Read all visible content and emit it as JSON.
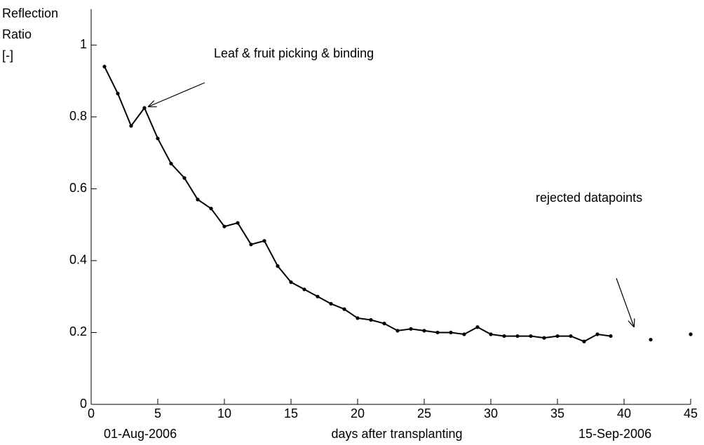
{
  "chart_data": {
    "type": "line",
    "y_label": [
      "Reflection",
      "Ratio",
      "[-]"
    ],
    "x_label": "days after transplanting",
    "x_start_label": "01-Aug-2006",
    "x_end_label": "15-Sep-2006",
    "annotations": [
      "Leaf & fruit picking & binding",
      "rejected datapoints"
    ],
    "x": [
      1,
      2,
      3,
      4,
      5,
      6,
      7,
      8,
      9,
      10,
      11,
      12,
      13,
      14,
      15,
      16,
      17,
      18,
      19,
      20,
      21,
      22,
      23,
      24,
      25,
      26,
      27,
      28,
      29,
      30,
      31,
      32,
      33,
      34,
      35,
      36,
      37,
      38,
      39,
      40,
      42,
      43,
      45
    ],
    "series": [
      {
        "name": "Reflection Ratio",
        "color": "#000000",
        "values": [
          0.94,
          0.865,
          0.775,
          0.825,
          0.74,
          0.67,
          0.63,
          0.57,
          0.545,
          0.495,
          0.505,
          0.445,
          0.455,
          0.385,
          0.34,
          0.32,
          0.3,
          0.28,
          0.265,
          0.24,
          0.235,
          0.225,
          0.205,
          0.21,
          0.205,
          0.2,
          0.2,
          0.195,
          0.215,
          0.195,
          0.19,
          0.19,
          0.19,
          0.185,
          0.19,
          0.19,
          0.175,
          0.195,
          0.19,
          null,
          0.18,
          null,
          0.195
        ]
      }
    ],
    "xlim": [
      0,
      45
    ],
    "ylim": [
      0,
      1.1
    ],
    "xticks": [
      0,
      5,
      10,
      15,
      20,
      25,
      30,
      35,
      40,
      45
    ],
    "yticks": [
      0,
      0.2,
      0.4,
      0.6,
      0.8,
      1
    ]
  }
}
